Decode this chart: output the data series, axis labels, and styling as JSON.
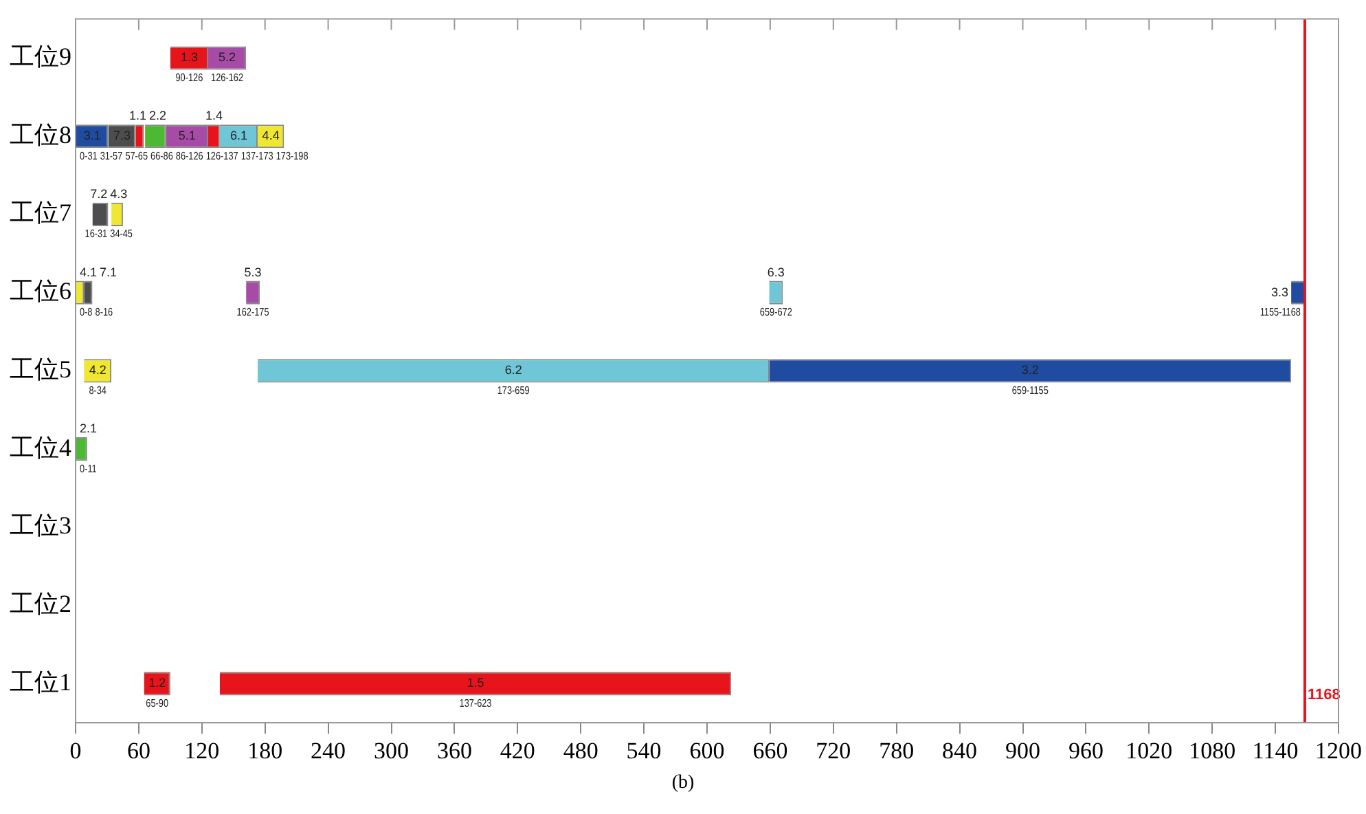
{
  "chart_data": {
    "type": "bar",
    "orientation": "horizontal",
    "categories": [
      "工位9",
      "工位8",
      "工位7",
      "工位6",
      "工位5",
      "工位4",
      "工位3",
      "工位2",
      "工位1"
    ],
    "xlim": [
      0,
      1200
    ],
    "xticks": [
      0,
      60,
      120,
      180,
      240,
      300,
      360,
      420,
      480,
      540,
      600,
      660,
      720,
      780,
      840,
      900,
      960,
      1020,
      1080,
      1140,
      1200
    ],
    "grid": false,
    "legend": false,
    "series": [
      {
        "name": "1.3",
        "color": "#e8141c",
        "values": [
          36,
          null,
          null,
          null,
          null,
          null,
          null,
          null,
          null
        ],
        "base": [
          90,
          null,
          null,
          null,
          null,
          null,
          null,
          null,
          null
        ],
        "value_labels": [
          "90-126",
          null,
          null,
          null,
          null,
          null,
          null,
          null,
          null
        ]
      },
      {
        "name": "5.2",
        "color": "#a64ca6",
        "values": [
          36,
          null,
          null,
          null,
          null,
          null,
          null,
          null,
          null
        ],
        "base": [
          126,
          null,
          null,
          null,
          null,
          null,
          null,
          null,
          null
        ],
        "value_labels": [
          "126-162",
          null,
          null,
          null,
          null,
          null,
          null,
          null,
          null
        ]
      },
      {
        "name": "3.1",
        "color": "#1f4ba0",
        "values": [
          null,
          31,
          null,
          null,
          null,
          null,
          null,
          null,
          null
        ],
        "base": [
          null,
          0,
          null,
          null,
          null,
          null,
          null,
          null,
          null
        ],
        "value_labels": [
          null,
          "0-31",
          null,
          null,
          null,
          null,
          null,
          null,
          null
        ]
      },
      {
        "name": "7.3",
        "color": "#4d4d4d",
        "values": [
          null,
          26,
          null,
          null,
          null,
          null,
          null,
          null,
          null
        ],
        "base": [
          null,
          31,
          null,
          null,
          null,
          null,
          null,
          null,
          null
        ],
        "value_labels": [
          null,
          "31-57",
          null,
          null,
          null,
          null,
          null,
          null,
          null
        ]
      },
      {
        "name": "1.1",
        "color": "#e8141c",
        "values": [
          null,
          8,
          null,
          null,
          null,
          null,
          null,
          null,
          null
        ],
        "base": [
          null,
          57,
          null,
          null,
          null,
          null,
          null,
          null,
          null
        ],
        "value_labels": [
          null,
          "57-65",
          null,
          null,
          null,
          null,
          null,
          null,
          null
        ]
      },
      {
        "name": "2.2",
        "color": "#4db833",
        "values": [
          null,
          20,
          null,
          null,
          null,
          null,
          null,
          null,
          null
        ],
        "base": [
          null,
          66,
          null,
          null,
          null,
          null,
          null,
          null,
          null
        ],
        "value_labels": [
          null,
          "66-86",
          null,
          null,
          null,
          null,
          null,
          null,
          null
        ]
      },
      {
        "name": "5.1",
        "color": "#a64ca6",
        "values": [
          null,
          40,
          null,
          null,
          null,
          null,
          null,
          null,
          null
        ],
        "base": [
          null,
          86,
          null,
          null,
          null,
          null,
          null,
          null,
          null
        ],
        "value_labels": [
          null,
          "86-126",
          null,
          null,
          null,
          null,
          null,
          null,
          null
        ]
      },
      {
        "name": "1.4",
        "color": "#e8141c",
        "values": [
          null,
          11,
          null,
          null,
          null,
          null,
          null,
          null,
          null
        ],
        "base": [
          null,
          126,
          null,
          null,
          null,
          null,
          null,
          null,
          null
        ],
        "value_labels": [
          null,
          "126-137",
          null,
          null,
          null,
          null,
          null,
          null,
          null
        ]
      },
      {
        "name": "6.1",
        "color": "#6ec6d6",
        "values": [
          null,
          36,
          null,
          null,
          null,
          null,
          null,
          null,
          null
        ],
        "base": [
          null,
          137,
          null,
          null,
          null,
          null,
          null,
          null,
          null
        ],
        "value_labels": [
          null,
          "137-173",
          null,
          null,
          null,
          null,
          null,
          null,
          null
        ]
      },
      {
        "name": "4.4",
        "color": "#f0e830",
        "values": [
          null,
          25,
          null,
          null,
          null,
          null,
          null,
          null,
          null
        ],
        "base": [
          null,
          173,
          null,
          null,
          null,
          null,
          null,
          null,
          null
        ],
        "value_labels": [
          null,
          "173-198",
          null,
          null,
          null,
          null,
          null,
          null,
          null
        ]
      },
      {
        "name": "7.2",
        "color": "#4d4d4d",
        "values": [
          null,
          null,
          15,
          null,
          null,
          null,
          null,
          null,
          null
        ],
        "base": [
          null,
          null,
          16,
          null,
          null,
          null,
          null,
          null,
          null
        ],
        "value_labels": [
          null,
          null,
          "16-31",
          null,
          null,
          null,
          null,
          null,
          null
        ]
      },
      {
        "name": "4.3",
        "color": "#f0e830",
        "values": [
          null,
          null,
          11,
          null,
          null,
          null,
          null,
          null,
          null
        ],
        "base": [
          null,
          null,
          34,
          null,
          null,
          null,
          null,
          null,
          null
        ],
        "value_labels": [
          null,
          null,
          "34-45",
          null,
          null,
          null,
          null,
          null,
          null
        ]
      },
      {
        "name": "4.1",
        "color": "#f0e830",
        "values": [
          null,
          null,
          null,
          8,
          null,
          null,
          null,
          null,
          null
        ],
        "base": [
          null,
          null,
          null,
          0,
          null,
          null,
          null,
          null,
          null
        ],
        "value_labels": [
          null,
          null,
          null,
          "0-8",
          null,
          null,
          null,
          null,
          null
        ]
      },
      {
        "name": "7.1",
        "color": "#4d4d4d",
        "values": [
          null,
          null,
          null,
          8,
          null,
          null,
          null,
          null,
          null
        ],
        "base": [
          null,
          null,
          null,
          8,
          null,
          null,
          null,
          null,
          null
        ],
        "value_labels": [
          null,
          null,
          null,
          "8-16",
          null,
          null,
          null,
          null,
          null
        ]
      },
      {
        "name": "5.3",
        "color": "#a64ca6",
        "values": [
          null,
          null,
          null,
          13,
          null,
          null,
          null,
          null,
          null
        ],
        "base": [
          null,
          null,
          null,
          162,
          null,
          null,
          null,
          null,
          null
        ],
        "value_labels": [
          null,
          null,
          null,
          "162-175",
          null,
          null,
          null,
          null,
          null
        ]
      },
      {
        "name": "6.3",
        "color": "#6ec6d6",
        "values": [
          null,
          null,
          null,
          13,
          null,
          null,
          null,
          null,
          null
        ],
        "base": [
          null,
          null,
          null,
          659,
          null,
          null,
          null,
          null,
          null
        ],
        "value_labels": [
          null,
          null,
          null,
          "659-672",
          null,
          null,
          null,
          null,
          null
        ]
      },
      {
        "name": "3.3",
        "color": "#1f4ba0",
        "values": [
          null,
          null,
          null,
          13,
          null,
          null,
          null,
          null,
          null
        ],
        "base": [
          null,
          null,
          null,
          1155,
          null,
          null,
          null,
          null,
          null
        ],
        "value_labels": [
          null,
          null,
          null,
          "1155-1168",
          null,
          null,
          null,
          null,
          null
        ]
      },
      {
        "name": "4.2",
        "color": "#f0e830",
        "values": [
          null,
          null,
          null,
          null,
          26,
          null,
          null,
          null,
          null
        ],
        "base": [
          null,
          null,
          null,
          null,
          8,
          null,
          null,
          null,
          null
        ],
        "value_labels": [
          null,
          null,
          null,
          null,
          "8-34",
          null,
          null,
          null,
          null
        ]
      },
      {
        "name": "6.2",
        "color": "#6ec6d6",
        "values": [
          null,
          null,
          null,
          null,
          486,
          null,
          null,
          null,
          null
        ],
        "base": [
          null,
          null,
          null,
          null,
          173,
          null,
          null,
          null,
          null
        ],
        "value_labels": [
          null,
          null,
          null,
          null,
          "173-659",
          null,
          null,
          null,
          null
        ]
      },
      {
        "name": "3.2",
        "color": "#1f4ba0",
        "values": [
          null,
          null,
          null,
          null,
          496,
          null,
          null,
          null,
          null
        ],
        "base": [
          null,
          null,
          null,
          null,
          659,
          null,
          null,
          null,
          null
        ],
        "value_labels": [
          null,
          null,
          null,
          null,
          "659-1155",
          null,
          null,
          null,
          null
        ]
      },
      {
        "name": "2.1",
        "color": "#4db833",
        "values": [
          null,
          null,
          null,
          null,
          null,
          11,
          null,
          null,
          null
        ],
        "base": [
          null,
          null,
          null,
          null,
          null,
          0,
          null,
          null,
          null
        ],
        "value_labels": [
          null,
          null,
          null,
          null,
          null,
          "0-11",
          null,
          null,
          null
        ]
      },
      {
        "name": "1.2",
        "color": "#e8141c",
        "values": [
          null,
          null,
          null,
          null,
          null,
          null,
          null,
          null,
          25
        ],
        "base": [
          null,
          null,
          null,
          null,
          null,
          null,
          null,
          null,
          65
        ],
        "value_labels": [
          null,
          null,
          null,
          null,
          null,
          null,
          null,
          null,
          "65-90"
        ]
      },
      {
        "name": "1.5",
        "color": "#e8141c",
        "values": [
          null,
          null,
          null,
          null,
          null,
          null,
          null,
          null,
          486
        ],
        "base": [
          null,
          null,
          null,
          null,
          null,
          null,
          null,
          null,
          137
        ],
        "value_labels": [
          null,
          null,
          null,
          null,
          null,
          null,
          null,
          null,
          "137-623"
        ]
      }
    ],
    "ref_lines": [
      {
        "axis": "x",
        "value": 1168,
        "label": "1168",
        "color": "#e8141c"
      }
    ],
    "annotations": [
      "(b)"
    ]
  }
}
